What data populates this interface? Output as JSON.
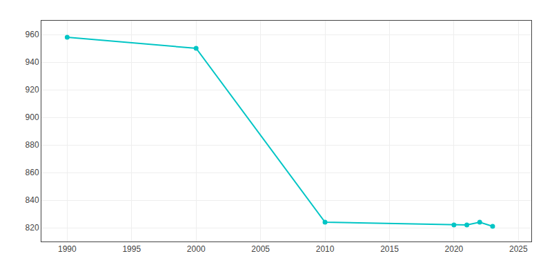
{
  "chart_data": {
    "type": "line",
    "x": [
      1990,
      2000,
      2010,
      2020,
      2021,
      2022,
      2023
    ],
    "values": [
      958,
      950,
      824,
      822,
      822,
      824,
      821
    ],
    "color": "#00C5C5",
    "marker": "circle",
    "line_style": "solid",
    "xlim": [
      1988,
      2026
    ],
    "ylim": [
      810,
      970
    ],
    "xticks": [
      1990,
      1995,
      2000,
      2005,
      2010,
      2015,
      2020,
      2025
    ],
    "yticks": [
      820,
      840,
      860,
      880,
      900,
      920,
      940,
      960
    ],
    "grid": true
  }
}
